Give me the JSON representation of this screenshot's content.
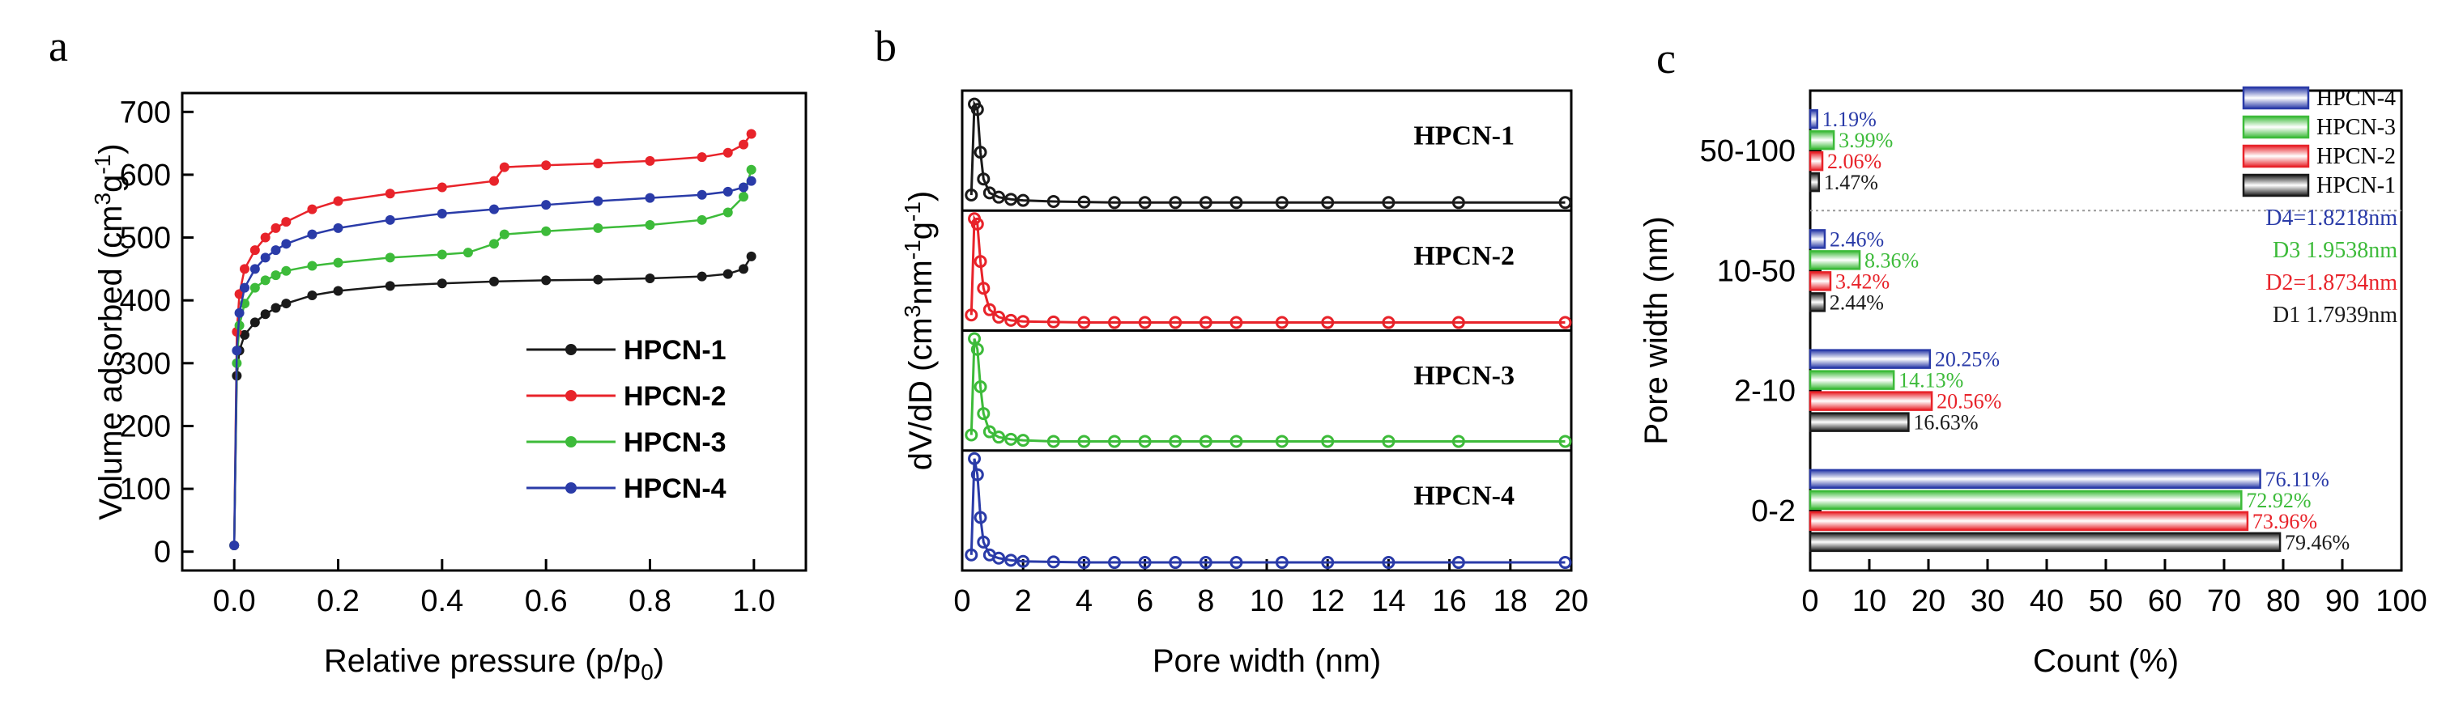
{
  "panels": {
    "a": "a",
    "b": "b",
    "c": "c"
  },
  "colors": {
    "HPCN-1": "#1a1a1a",
    "HPCN-2": "#e8232a",
    "HPCN-3": "#3dbb3a",
    "HPCN-4": "#2a3ba8"
  },
  "chart_data": [
    {
      "type": "line",
      "panel": "a",
      "xlabel_main": "Relative pressure (p/p",
      "xlabel_sub": "0",
      "xlabel_end": ")",
      "ylabel_main": "Volume adsorbed (cm",
      "ylabel_sup1": "3",
      "ylabel_mid": "g",
      "ylabel_sup2": "-1",
      "ylabel_end": ")",
      "xlim": [
        -0.1,
        1.1
      ],
      "ylim": [
        -30,
        730
      ],
      "xticks": [
        "0.0",
        "0.2",
        "0.4",
        "0.6",
        "0.8",
        "1.0"
      ],
      "yticks": [
        "0",
        "100",
        "200",
        "300",
        "400",
        "500",
        "600",
        "700"
      ],
      "legend_position": "lower-right",
      "series": [
        {
          "name": "HPCN-1",
          "x": [
            0.0,
            0.005,
            0.01,
            0.02,
            0.04,
            0.06,
            0.08,
            0.1,
            0.15,
            0.2,
            0.3,
            0.4,
            0.5,
            0.6,
            0.7,
            0.8,
            0.9,
            0.95,
            0.98,
            0.995
          ],
          "y": [
            10,
            280,
            320,
            345,
            365,
            378,
            388,
            395,
            408,
            415,
            423,
            427,
            430,
            432,
            433,
            435,
            438,
            442,
            450,
            470
          ]
        },
        {
          "name": "HPCN-2",
          "x": [
            0.0,
            0.005,
            0.01,
            0.02,
            0.04,
            0.06,
            0.08,
            0.1,
            0.15,
            0.2,
            0.3,
            0.4,
            0.5,
            0.52,
            0.6,
            0.7,
            0.8,
            0.9,
            0.95,
            0.98,
            0.995
          ],
          "y": [
            10,
            350,
            410,
            450,
            480,
            500,
            515,
            525,
            545,
            558,
            570,
            580,
            590,
            612,
            615,
            618,
            622,
            628,
            635,
            648,
            665
          ]
        },
        {
          "name": "HPCN-3",
          "x": [
            0.0,
            0.005,
            0.01,
            0.02,
            0.04,
            0.06,
            0.08,
            0.1,
            0.15,
            0.2,
            0.3,
            0.4,
            0.45,
            0.5,
            0.52,
            0.6,
            0.7,
            0.8,
            0.9,
            0.95,
            0.98,
            0.995
          ],
          "y": [
            10,
            300,
            360,
            395,
            420,
            432,
            440,
            447,
            455,
            460,
            468,
            473,
            476,
            490,
            505,
            510,
            515,
            520,
            528,
            540,
            565,
            608
          ]
        },
        {
          "name": "HPCN-4",
          "x": [
            0.0,
            0.005,
            0.01,
            0.02,
            0.04,
            0.06,
            0.08,
            0.1,
            0.15,
            0.2,
            0.3,
            0.4,
            0.5,
            0.6,
            0.7,
            0.8,
            0.9,
            0.95,
            0.98,
            0.995
          ],
          "y": [
            10,
            320,
            380,
            420,
            450,
            468,
            480,
            490,
            505,
            515,
            528,
            538,
            545,
            552,
            558,
            563,
            568,
            573,
            580,
            590
          ]
        }
      ]
    },
    {
      "type": "line",
      "panel": "b",
      "xlabel": "Pore width (nm)",
      "ylabel_main": "dV/dD (cm",
      "ylabel_sup1": "3",
      "ylabel_mid": "nm",
      "ylabel_sup2": "-1",
      "ylabel_mid2": "g",
      "ylabel_sup3": "-1",
      "ylabel_end": ")",
      "xlim": [
        0,
        20
      ],
      "xticks": [
        "0",
        "2",
        "4",
        "6",
        "8",
        "10",
        "12",
        "14",
        "16",
        "18",
        "20"
      ],
      "stacked": true,
      "series": [
        {
          "name": "HPCN-1",
          "label": "HPCN-1",
          "x": [
            0.3,
            0.4,
            0.5,
            0.6,
            0.7,
            0.9,
            1.2,
            1.6,
            2.0,
            3,
            4,
            5,
            6,
            7,
            8,
            9,
            10.5,
            12,
            14,
            16.3,
            19.8
          ],
          "y": [
            0.1,
            0.95,
            0.9,
            0.5,
            0.25,
            0.12,
            0.08,
            0.06,
            0.05,
            0.04,
            0.035,
            0.03,
            0.03,
            0.03,
            0.03,
            0.03,
            0.03,
            0.03,
            0.03,
            0.03,
            0.03
          ]
        },
        {
          "name": "HPCN-2",
          "label": "HPCN-2",
          "x": [
            0.3,
            0.4,
            0.5,
            0.6,
            0.7,
            0.9,
            1.2,
            1.6,
            2.0,
            3,
            4,
            5,
            6,
            7,
            8,
            9,
            10.5,
            12,
            14,
            16.3,
            19.8
          ],
          "y": [
            0.1,
            1.0,
            0.95,
            0.6,
            0.35,
            0.15,
            0.08,
            0.05,
            0.04,
            0.035,
            0.03,
            0.03,
            0.03,
            0.03,
            0.03,
            0.03,
            0.03,
            0.03,
            0.03,
            0.03,
            0.03
          ]
        },
        {
          "name": "HPCN-3",
          "label": "HPCN-3",
          "x": [
            0.3,
            0.4,
            0.5,
            0.6,
            0.7,
            0.9,
            1.2,
            1.6,
            2.0,
            3,
            4,
            5,
            6,
            7,
            8,
            9,
            10.5,
            12,
            14,
            16.3,
            19.8
          ],
          "y": [
            0.1,
            1.0,
            0.9,
            0.55,
            0.3,
            0.13,
            0.08,
            0.06,
            0.05,
            0.04,
            0.04,
            0.04,
            0.04,
            0.04,
            0.04,
            0.04,
            0.04,
            0.04,
            0.04,
            0.04,
            0.04
          ]
        },
        {
          "name": "HPCN-4",
          "label": "HPCN-4",
          "x": [
            0.3,
            0.4,
            0.5,
            0.6,
            0.7,
            0.9,
            1.2,
            1.6,
            2.0,
            3,
            4,
            5,
            6,
            7,
            8,
            9,
            10.5,
            12,
            14,
            16.3,
            19.8
          ],
          "y": [
            0.1,
            1.0,
            0.85,
            0.45,
            0.22,
            0.1,
            0.07,
            0.05,
            0.04,
            0.035,
            0.03,
            0.03,
            0.03,
            0.03,
            0.03,
            0.03,
            0.03,
            0.03,
            0.03,
            0.03,
            0.03
          ]
        }
      ]
    },
    {
      "type": "bar",
      "panel": "c",
      "orientation": "horizontal",
      "xlabel": "Count (%)",
      "ylabel": "Pore width (nm)",
      "xlim": [
        0,
        100
      ],
      "xticks": [
        "0",
        "10",
        "20",
        "30",
        "40",
        "50",
        "60",
        "70",
        "80",
        "90",
        "100"
      ],
      "categories": [
        "0-2",
        "2-10",
        "10-50",
        "50-100"
      ],
      "series": [
        {
          "name": "HPCN-4",
          "values": [
            76.11,
            20.25,
            2.46,
            1.19
          ],
          "labels": [
            "76.11%",
            "20.25%",
            "2.46%",
            "1.19%"
          ]
        },
        {
          "name": "HPCN-3",
          "values": [
            72.92,
            14.13,
            8.36,
            3.99
          ],
          "labels": [
            "72.92%",
            "14.13%",
            "8.36%",
            "3.99%"
          ]
        },
        {
          "name": "HPCN-2",
          "values": [
            73.96,
            20.56,
            3.42,
            2.06
          ],
          "labels": [
            "73.96%",
            "20.56%",
            "3.42%",
            "2.06%"
          ]
        },
        {
          "name": "HPCN-1",
          "values": [
            79.46,
            16.63,
            2.44,
            1.47
          ],
          "labels": [
            "79.46%",
            "16.63%",
            "2.44%",
            "1.47%"
          ]
        }
      ],
      "legend": [
        "HPCN-4",
        "HPCN-3",
        "HPCN-2",
        "HPCN-1"
      ],
      "annotations": [
        {
          "text": "D4=1.8218nm",
          "series": "HPCN-4"
        },
        {
          "text": "D3  1.9538nm",
          "series": "HPCN-3"
        },
        {
          "text": "D2=1.8734nm",
          "series": "HPCN-2"
        },
        {
          "text": "D1  1.7939nm",
          "series": "HPCN-1"
        }
      ]
    }
  ]
}
